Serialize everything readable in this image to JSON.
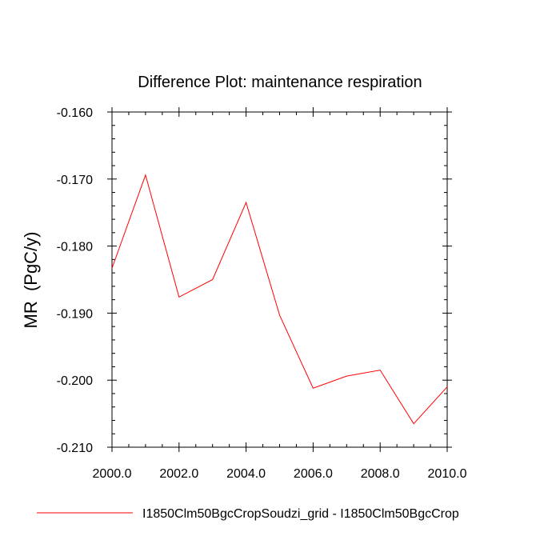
{
  "chart_data": {
    "type": "line",
    "title": "Difference Plot: maintenance respiration",
    "xlabel": "",
    "ylabel": "MR  (PgC/y)",
    "xlim": [
      2000,
      2010
    ],
    "ylim": [
      -0.21,
      -0.16
    ],
    "xticks": [
      2000,
      2002,
      2004,
      2006,
      2008,
      2010
    ],
    "xtick_labels": [
      "2000.0",
      "2002.0",
      "2004.0",
      "2006.0",
      "2008.0",
      "2010.0"
    ],
    "yticks": [
      -0.16,
      -0.17,
      -0.18,
      -0.19,
      -0.2,
      -0.21
    ],
    "ytick_labels": [
      "-0.160",
      "-0.170",
      "-0.180",
      "-0.190",
      "-0.200",
      "-0.210"
    ],
    "grid": false,
    "legend_position": "bottom",
    "series": [
      {
        "name": "I1850Clm50BgcCropSoudzi_grid - I1850Clm50BgcCrop",
        "color": "#ff0000",
        "x": [
          2000,
          2001,
          2002,
          2003,
          2004,
          2005,
          2006,
          2007,
          2008,
          2009,
          2010
        ],
        "y": [
          -0.1833,
          -0.1694,
          -0.1876,
          -0.185,
          -0.1735,
          -0.1903,
          -0.2012,
          -0.1994,
          -0.1985,
          -0.2065,
          -0.201
        ]
      }
    ]
  }
}
